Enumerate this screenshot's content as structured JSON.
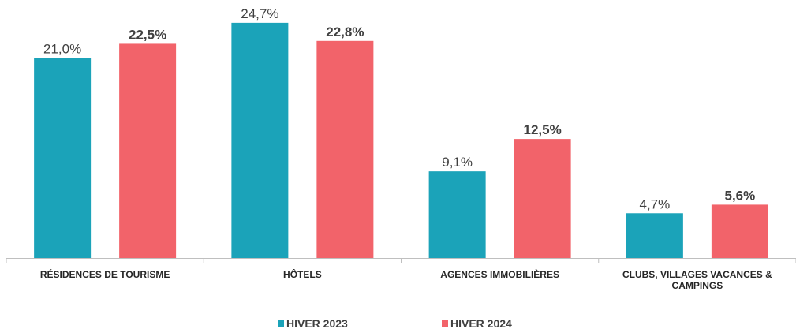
{
  "chart_data": {
    "type": "bar",
    "categories": [
      "RÉSIDENCES DE TOURISME",
      "HÔTELS",
      "AGENCES IMMOBILIÈRES",
      "CLUBS, VILLAGES VACANCES & CAMPINGS"
    ],
    "series": [
      {
        "name": "HIVER 2023",
        "color": "#1ba3b9",
        "values": [
          21.0,
          24.7,
          9.1,
          4.7
        ],
        "value_labels": [
          "21,0%",
          "24,7%",
          "9,1%",
          "4,7%"
        ]
      },
      {
        "name": "HIVER 2024",
        "color": "#f2636a",
        "values": [
          22.5,
          22.8,
          12.5,
          5.6
        ],
        "value_labels": [
          "22,5%",
          "22,8%",
          "12,5%",
          "5,6%"
        ]
      }
    ],
    "legend": "bottom"
  }
}
